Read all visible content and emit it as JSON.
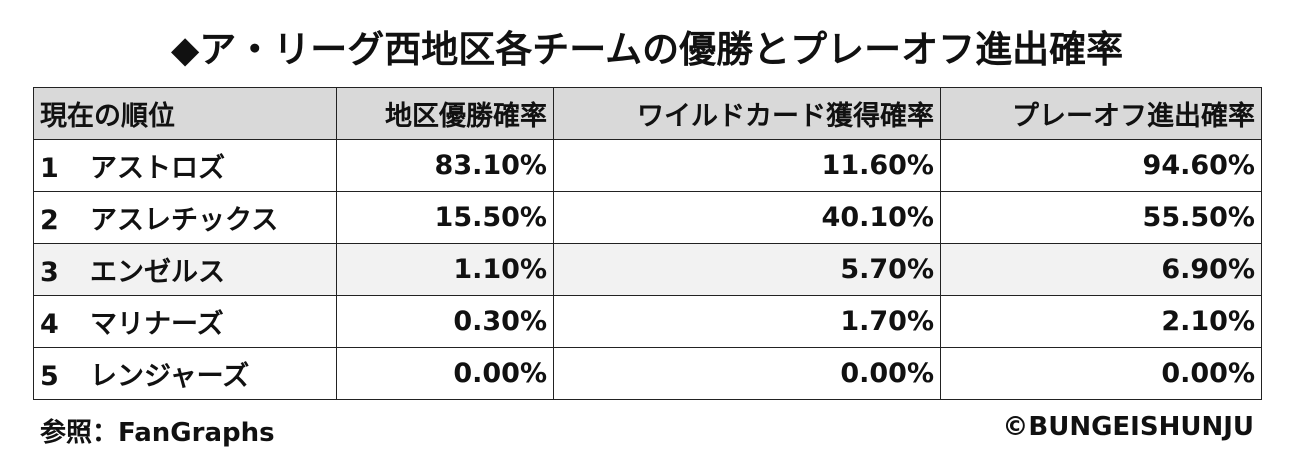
{
  "title": "◆ア・リーグ西地区各チームの優勝とプレーオフ進出確率",
  "table": {
    "headers": [
      "現在の順位",
      "地区優勝確率",
      "ワイルドカード獲得確率",
      "プレーオフ進出確率"
    ],
    "rows": [
      {
        "rank": "1",
        "team": "アストロズ",
        "values": [
          "83.10%",
          "11.60%",
          "94.60%"
        ]
      },
      {
        "rank": "2",
        "team": "アスレチックス",
        "values": [
          "15.50%",
          "40.10%",
          "55.50%"
        ]
      },
      {
        "rank": "3",
        "team": "エンゼルス",
        "values": [
          "1.10%",
          "5.70%",
          "6.90%"
        ]
      },
      {
        "rank": "4",
        "team": "マリナーズ",
        "values": [
          "0.30%",
          "1.70%",
          "2.10%"
        ]
      },
      {
        "rank": "5",
        "team": "レンジャーズ",
        "values": [
          "0.00%",
          "0.00%",
          "0.00%"
        ]
      }
    ]
  },
  "footer": {
    "source": "参照：FanGraphs",
    "credit": "©BUNGEISHUNJU"
  }
}
